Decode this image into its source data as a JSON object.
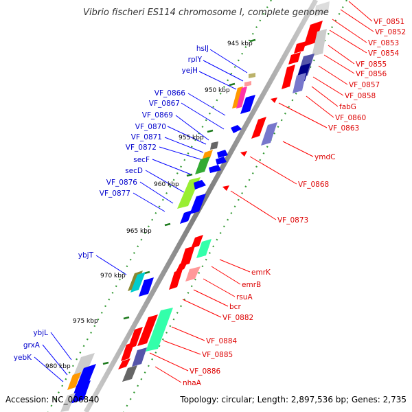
{
  "title": "Vibrio fischeri ES114 chromosome I, complete genome",
  "footer": {
    "accession": "Accession: NC_006840",
    "summary": "Topology: circular; Length: 2,897,536 bp; Genes: 2,735"
  },
  "ticks": [
    "945 kbp",
    "950 kbp",
    "955 kbp",
    "960 kbp",
    "965 kbp",
    "970 kbp",
    "975 kbp",
    "980 kbp"
  ],
  "left_labels": [
    "hslJ",
    "rplY",
    "yejH",
    "VF_0866",
    "VF_0867",
    "VF_0869",
    "VF_0870",
    "VF_0871",
    "VF_0872",
    "secF",
    "secD",
    "VF_0876",
    "VF_0877",
    "ybjT",
    "ybjL",
    "grxA",
    "yebK"
  ],
  "right_labels": [
    "VF_0851",
    "VF_0852",
    "VF_0853",
    "VF_0854",
    "VF_0855",
    "VF_0856",
    "VF_0857",
    "VF_0858",
    "fabG",
    "VF_0860",
    "VF_0863",
    "ymdC",
    "VF_0868",
    "VF_0873",
    "emrK",
    "emrB",
    "rsuA",
    "bcr",
    "VF_0882",
    "VF_0884",
    "VF_0885",
    "VF_0886",
    "nhaA"
  ],
  "colors": {
    "backbone": "#999999",
    "forward_cds": "#0000ff",
    "reverse_cds": "#ff0000",
    "tick_dots": "#339933",
    "left_label": "#0000cc",
    "right_label": "#dd0000"
  }
}
